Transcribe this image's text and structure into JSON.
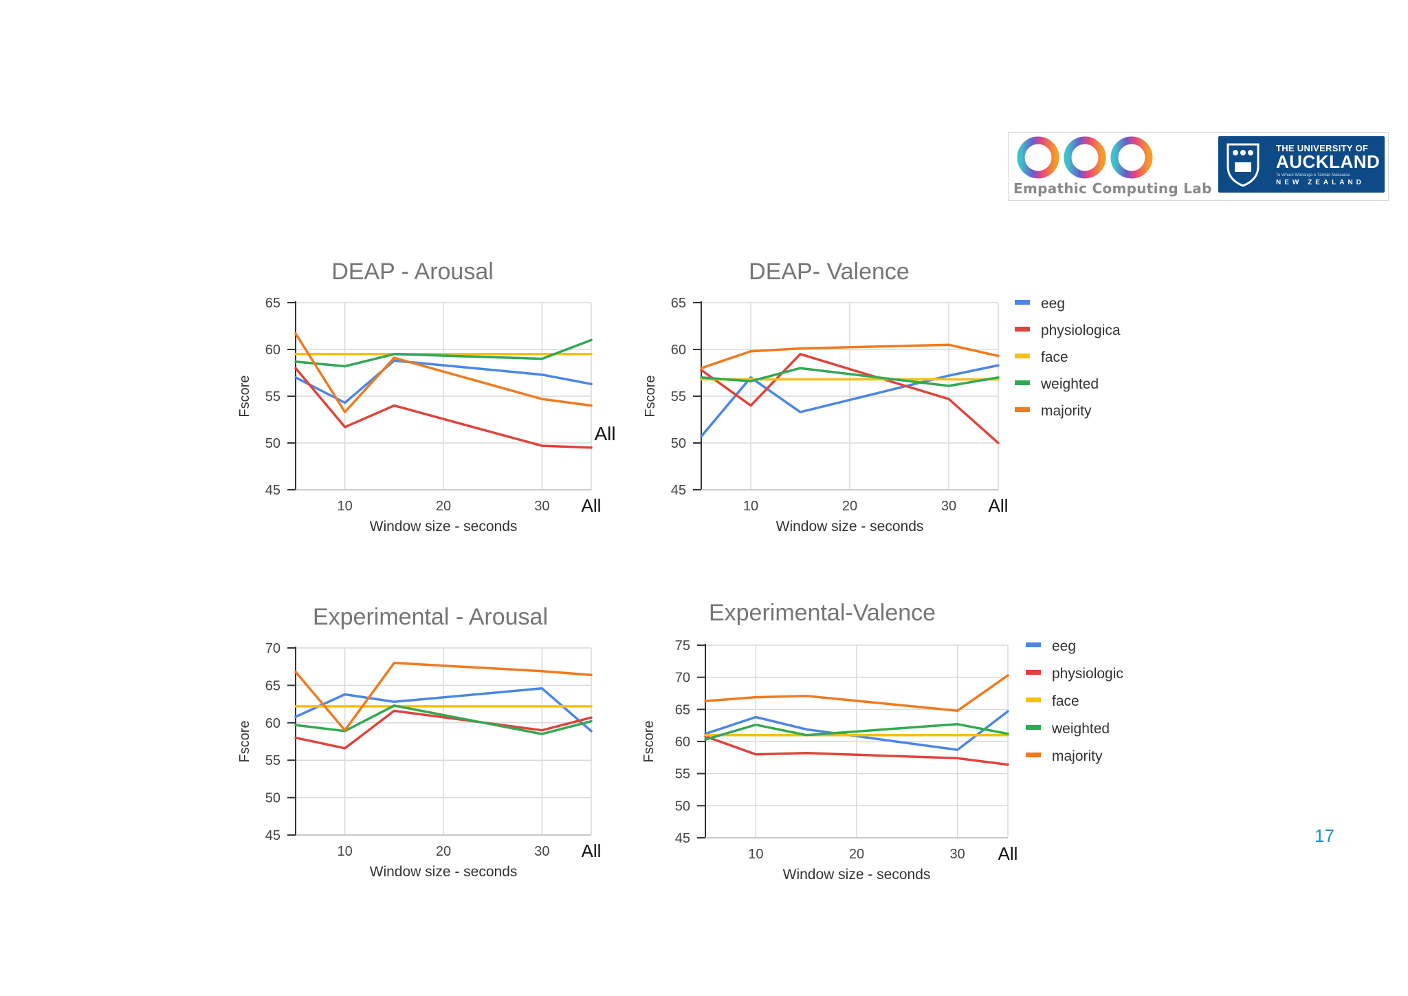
{
  "logos": {
    "lab_name": "Empathic Computing Lab",
    "university": {
      "line1": "THE UNIVERSITY OF",
      "line2": "AUCKLAND",
      "line3": "Te Whare Wānanga o Tāmaki Makaurau",
      "line4": "NEW ZEALAND"
    },
    "colors": {
      "uoa_blue": "#0d4a86"
    }
  },
  "page_number": "17",
  "series_colors": {
    "eeg": "#4a86e8",
    "physiological": "#e0433b",
    "face": "#f5c012",
    "weighted": "#33a853",
    "majority": "#f07a1f"
  },
  "chart_data": [
    {
      "id": "deap-arousal",
      "type": "line",
      "title": "DEAP - Arousal",
      "xlabel": "Window size - seconds",
      "ylabel": "Fscore",
      "x": [
        5,
        10,
        15,
        30,
        35
      ],
      "xlim": [
        5,
        35
      ],
      "xticks": [
        10,
        20,
        30,
        35
      ],
      "xtick_labels": [
        "10",
        "20",
        "30",
        "All"
      ],
      "extra_annotation": "All",
      "ylim": [
        45,
        65
      ],
      "yticks": [
        45,
        50,
        55,
        60,
        65
      ],
      "grid": true,
      "legend": "none",
      "series": [
        {
          "name": "eeg",
          "values": [
            57,
            54.3,
            58.8,
            57.3,
            56.3
          ]
        },
        {
          "name": "physiological",
          "values": [
            58,
            51.7,
            54,
            49.7,
            49.5
          ]
        },
        {
          "name": "face",
          "values": [
            59.5,
            59.5,
            59.5,
            59.5,
            59.5
          ]
        },
        {
          "name": "weighted",
          "values": [
            58.7,
            58.2,
            59.5,
            59.0,
            61.0
          ]
        },
        {
          "name": "majority",
          "values": [
            61.7,
            53.3,
            59.1,
            54.7,
            54.0
          ]
        }
      ]
    },
    {
      "id": "deap-valence",
      "type": "line",
      "title": "DEAP- Valence",
      "xlabel": "Window size - seconds",
      "ylabel": "Fscore",
      "x": [
        5,
        10,
        15,
        30,
        35
      ],
      "xlim": [
        5,
        35
      ],
      "xticks": [
        10,
        20,
        30,
        35
      ],
      "xtick_labels": [
        "10",
        "20",
        "30",
        "All"
      ],
      "ylim": [
        45,
        65
      ],
      "yticks": [
        45,
        50,
        55,
        60,
        65
      ],
      "grid": true,
      "legend": "right",
      "legend_labels": [
        "eeg",
        "physiologica",
        "face",
        "weighted",
        "majority"
      ],
      "series": [
        {
          "name": "eeg",
          "values": [
            50.7,
            57.0,
            53.3,
            57.2,
            58.3
          ]
        },
        {
          "name": "physiological",
          "values": [
            57.8,
            54.0,
            59.5,
            54.7,
            50.0
          ]
        },
        {
          "name": "face",
          "values": [
            56.8,
            56.8,
            56.8,
            56.8,
            56.8
          ]
        },
        {
          "name": "weighted",
          "values": [
            57.0,
            56.6,
            58.0,
            56.1,
            57.0
          ]
        },
        {
          "name": "majority",
          "values": [
            58.0,
            59.8,
            60.1,
            60.5,
            59.3
          ]
        }
      ]
    },
    {
      "id": "exp-arousal",
      "type": "line",
      "title": "Experimental - Arousal",
      "xlabel": "Window size - seconds",
      "ylabel": "Fscore",
      "x": [
        5,
        10,
        15,
        30,
        35
      ],
      "xlim": [
        5,
        35
      ],
      "xticks": [
        10,
        20,
        30,
        35
      ],
      "xtick_labels": [
        "10",
        "20",
        "30",
        "All"
      ],
      "ylim": [
        45,
        70
      ],
      "yticks": [
        45,
        50,
        55,
        60,
        65,
        70
      ],
      "grid": true,
      "legend": "none",
      "series": [
        {
          "name": "eeg",
          "values": [
            60.8,
            63.8,
            62.8,
            64.6,
            58.9
          ]
        },
        {
          "name": "physiological",
          "values": [
            58,
            56.6,
            61.6,
            59,
            60.7
          ]
        },
        {
          "name": "face",
          "values": [
            62.2,
            62.2,
            62.2,
            62.2,
            62.2
          ]
        },
        {
          "name": "weighted",
          "values": [
            59.7,
            58.9,
            62.3,
            58.5,
            60.2
          ]
        },
        {
          "name": "majority",
          "values": [
            66.8,
            59.0,
            68.0,
            66.9,
            66.4
          ]
        }
      ]
    },
    {
      "id": "exp-valence",
      "type": "line",
      "title": "Experimental-Valence",
      "xlabel": "Window size - seconds",
      "ylabel": "Fscore",
      "x": [
        5,
        10,
        15,
        30,
        35
      ],
      "xlim": [
        5,
        35
      ],
      "xticks": [
        10,
        20,
        30,
        35
      ],
      "xtick_labels": [
        "10",
        "20",
        "30",
        "All"
      ],
      "ylim": [
        45,
        75
      ],
      "yticks": [
        45,
        50,
        55,
        60,
        65,
        70,
        75
      ],
      "grid": true,
      "legend": "right",
      "legend_labels": [
        "eeg",
        "physiologic",
        "face",
        "weighted",
        "majority"
      ],
      "series": [
        {
          "name": "eeg",
          "values": [
            61.2,
            63.8,
            61.9,
            58.7,
            64.7
          ]
        },
        {
          "name": "physiological",
          "values": [
            60.8,
            58.0,
            58.2,
            57.4,
            56.4
          ]
        },
        {
          "name": "face",
          "values": [
            61.0,
            61.0,
            61.0,
            61.0,
            61.0
          ]
        },
        {
          "name": "weighted",
          "values": [
            60.3,
            62.6,
            61.0,
            62.7,
            61.2
          ]
        },
        {
          "name": "majority",
          "values": [
            66.3,
            66.9,
            67.1,
            64.8,
            70.3
          ]
        }
      ]
    }
  ]
}
